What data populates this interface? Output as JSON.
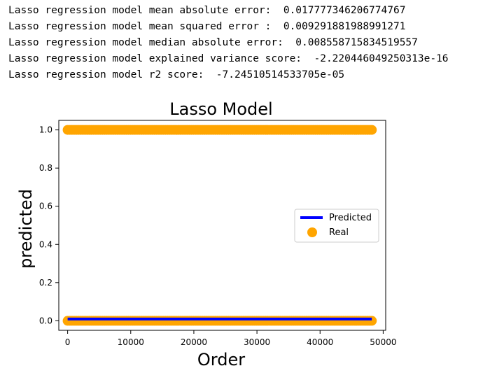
{
  "output": {
    "lines": [
      "Lasso regression model mean absolute error:  0.017777346206774767",
      "Lasso regression model mean squared error :  0.009291881988991271",
      "Lasso regression model median absolute error:  0.008558715834519557",
      "Lasso regression model explained variance score:  -2.220446049250313e-16",
      "Lasso regression model r2 score:  -7.24510514533705e-05"
    ]
  },
  "chart_data": {
    "type": "scatter",
    "title": "Lasso Model",
    "xlabel": "Order",
    "ylabel": "predicted",
    "xlim": [
      -1400,
      50400
    ],
    "ylim": [
      -0.05,
      1.05
    ],
    "xticks": [
      0,
      10000,
      20000,
      30000,
      40000,
      50000
    ],
    "yticks": [
      0.0,
      0.2,
      0.4,
      0.6,
      0.8,
      1.0
    ],
    "xtick_labels": [
      "0",
      "10000",
      "20000",
      "30000",
      "40000",
      "50000"
    ],
    "ytick_labels": [
      "0.0",
      "0.2",
      "0.4",
      "0.6",
      "0.8",
      "1.0"
    ],
    "grid": false,
    "legend": "center-right",
    "series": [
      {
        "name": "Predicted",
        "kind": "line",
        "color": "#0000ff",
        "x": [
          0,
          48200
        ],
        "y": [
          0.0093,
          0.0093
        ]
      },
      {
        "name": "Real",
        "kind": "scatter",
        "color": "#ffa500",
        "x_range": [
          0,
          48200
        ],
        "y_levels": [
          0,
          1
        ]
      }
    ]
  }
}
